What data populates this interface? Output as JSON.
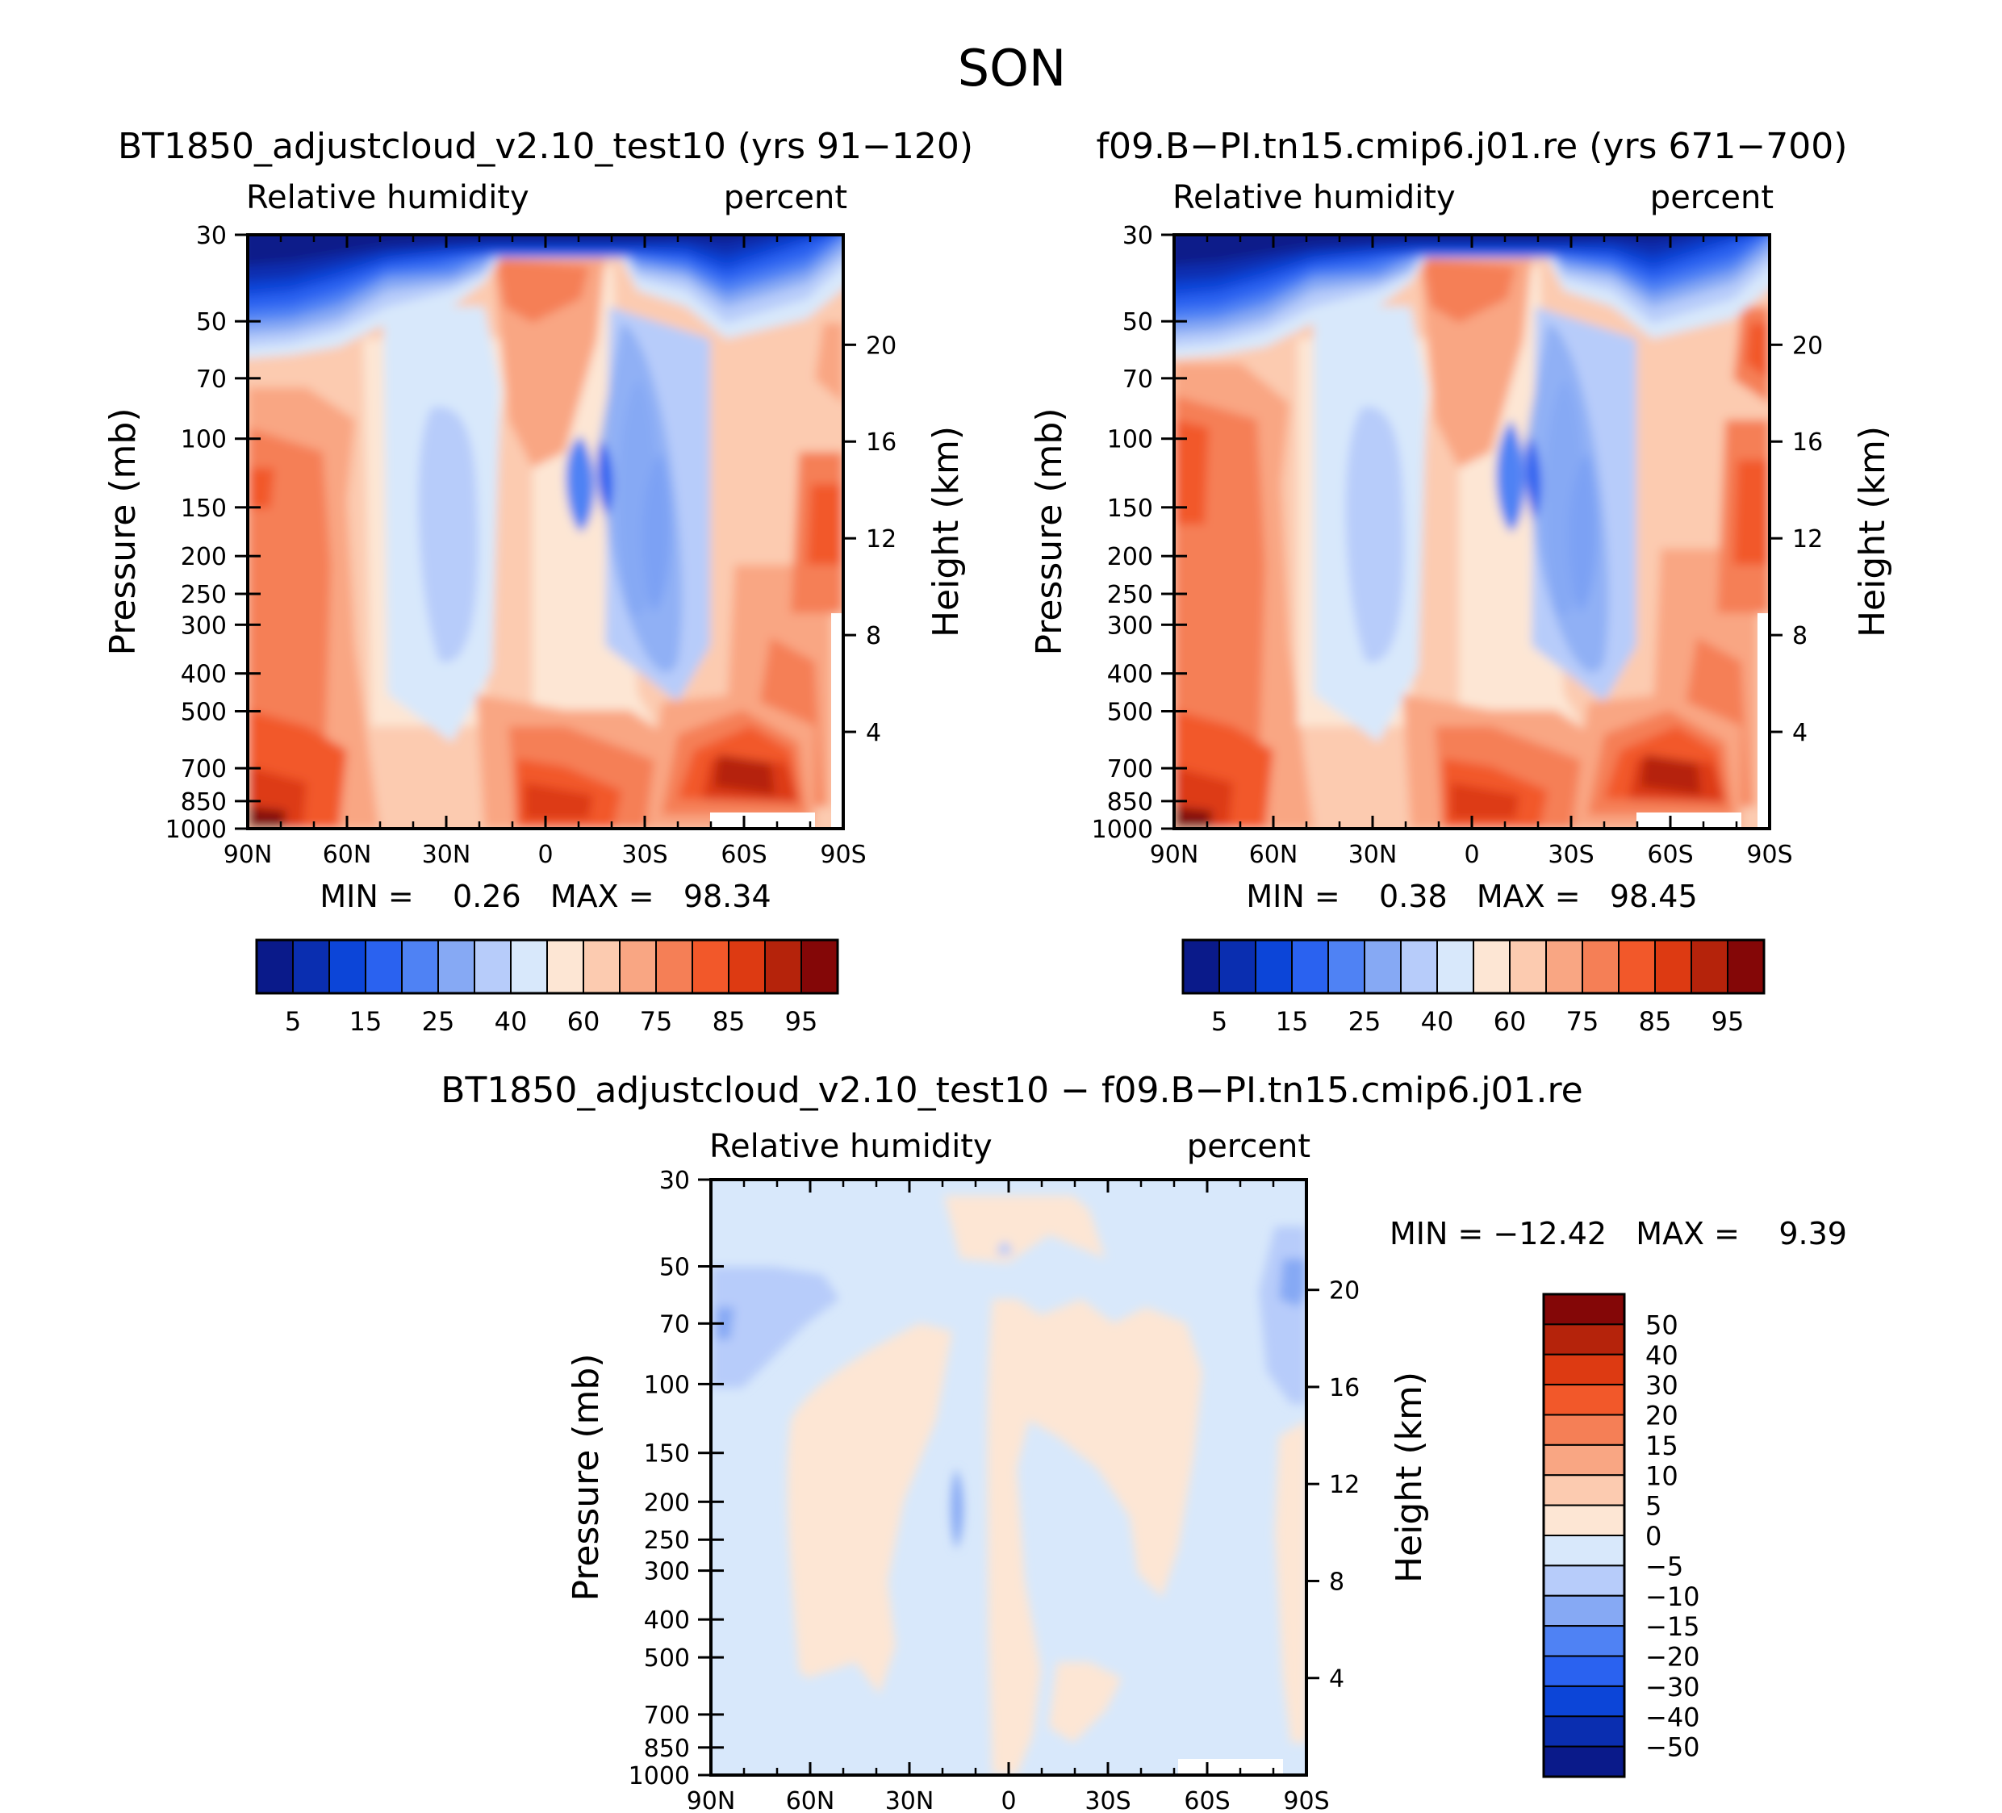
{
  "figure": {
    "season": "SON",
    "colors": {
      "missing": "#ffffff",
      "axis": "#000000"
    }
  },
  "panels": [
    {
      "id": "left",
      "title": "BT1850_adjustcloud_v2.10_test10 (yrs 91−120)",
      "left_label": "Relative humidity",
      "right_label": "percent",
      "min_max_text": "MIN =    0.26   MAX =   98.34"
    },
    {
      "id": "right",
      "title": "f09.B−PI.tn15.cmip6.j01.re (yrs 671−700)",
      "left_label": "Relative humidity",
      "right_label": "percent",
      "min_max_text": "MIN =    0.38   MAX =   98.45"
    },
    {
      "id": "diff",
      "title": "BT1850_adjustcloud_v2.10_test10 − f09.B−PI.tn15.cmip6.j01.re",
      "left_label": "Relative humidity",
      "right_label": "percent",
      "min_max_text": "MIN = −12.42   MAX =    9.39"
    }
  ],
  "chart_data": [
    {
      "type": "contour",
      "panel": "left",
      "variable": "Relative humidity",
      "units": "percent",
      "ylabel": "Pressure (mb)",
      "y2label": "Height (km)",
      "x_ticks": [
        "90N",
        "60N",
        "30N",
        "0",
        "30S",
        "60S",
        "90S"
      ],
      "y_ticks": [
        "30",
        "50",
        "70",
        "100",
        "150",
        "200",
        "250",
        "300",
        "400",
        "500",
        "700",
        "850",
        "1000"
      ],
      "y2_ticks": [
        "20",
        "16",
        "12",
        "8",
        "4"
      ],
      "min": 0.26,
      "max": 98.34
    },
    {
      "type": "contour",
      "panel": "right",
      "variable": "Relative humidity",
      "units": "percent",
      "ylabel": "Pressure (mb)",
      "y2label": "Height (km)",
      "x_ticks": [
        "90N",
        "60N",
        "30N",
        "0",
        "30S",
        "60S",
        "90S"
      ],
      "y_ticks": [
        "30",
        "50",
        "70",
        "100",
        "150",
        "200",
        "250",
        "300",
        "400",
        "500",
        "700",
        "850",
        "1000"
      ],
      "y2_ticks": [
        "20",
        "16",
        "12",
        "8",
        "4"
      ],
      "min": 0.38,
      "max": 98.45
    },
    {
      "type": "contour",
      "panel": "diff",
      "variable": "Relative humidity",
      "units": "percent",
      "ylabel": "Pressure (mb)",
      "y2label": "Height (km)",
      "x_ticks": [
        "90N",
        "60N",
        "30N",
        "0",
        "30S",
        "60S",
        "90S"
      ],
      "y_ticks": [
        "30",
        "50",
        "70",
        "100",
        "150",
        "200",
        "250",
        "300",
        "400",
        "500",
        "700",
        "850",
        "1000"
      ],
      "y2_ticks": [
        "20",
        "16",
        "12",
        "8",
        "4"
      ],
      "min": -12.42,
      "max": 9.39
    }
  ],
  "colorbars": {
    "main": {
      "colors": [
        "#0a1a8a",
        "#0a2eb0",
        "#0c45d8",
        "#2a62f0",
        "#4f82f4",
        "#86a9f4",
        "#b7ccfa",
        "#d8e8fb",
        "#fde6d4",
        "#fccbb0",
        "#f9a683",
        "#f57f56",
        "#f2582a",
        "#dd3a12",
        "#b5230b",
        "#840707"
      ],
      "labels": [
        "5",
        "15",
        "25",
        "40",
        "60",
        "75",
        "85",
        "95"
      ]
    },
    "diff": {
      "colors": [
        "#0a1a8a",
        "#0a2eb0",
        "#0c45d8",
        "#2a62f0",
        "#4f82f4",
        "#86a9f4",
        "#b7ccfa",
        "#d8e8fb",
        "#fde6d4",
        "#fccbb0",
        "#f9a683",
        "#f57f56",
        "#f2582a",
        "#dd3a12",
        "#b5230b",
        "#840707"
      ],
      "labels": [
        "50",
        "40",
        "30",
        "20",
        "15",
        "10",
        "5",
        "0",
        "−5",
        "−10",
        "−15",
        "−20",
        "−30",
        "−40",
        "−50"
      ]
    }
  }
}
